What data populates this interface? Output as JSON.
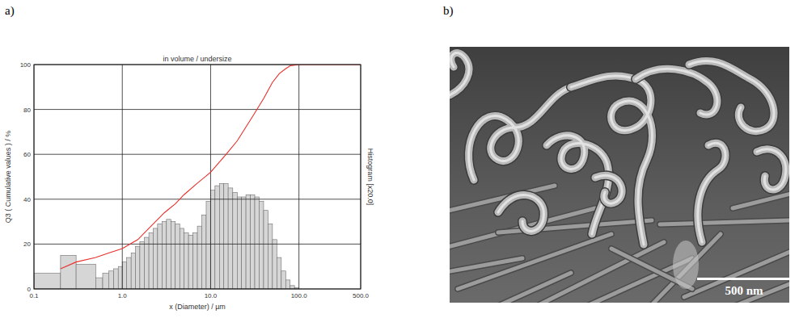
{
  "chart_data": {
    "type": "histogram",
    "title": "in volume / undersize",
    "xlabel": "x (Diameter) / µm",
    "ylabel": "Q3 ( Cumulative values ) / %",
    "y2label": "Histogram [x20.0]",
    "log": "x",
    "grid": true,
    "xlim": [
      0.1,
      500
    ],
    "xticks": [
      0.1,
      {
        "value": 1,
        "label": "1.0"
      },
      {
        "value": 10,
        "label": "10.0"
      },
      {
        "value": 100,
        "label": "100.0"
      },
      {
        "value": 500,
        "label": "500.0"
      }
    ],
    "ylim": [
      0,
      100
    ],
    "yticks": [
      0,
      20,
      40,
      60,
      80,
      100
    ],
    "color": "#d6d6d6",
    "bins": [
      0.1,
      0.2,
      0.3,
      0.5,
      0.6,
      0.7,
      0.8,
      0.9,
      1.0,
      1.12,
      1.26,
      1.41,
      1.58,
      1.78,
      2.0,
      2.24,
      2.51,
      2.82,
      3.16,
      3.55,
      3.98,
      4.47,
      5.01,
      5.62,
      6.31,
      7.08,
      7.94,
      8.91,
      10.0,
      11.2,
      12.6,
      14.1,
      15.8,
      17.8,
      20.0,
      22.4,
      25.1,
      28.2,
      31.6,
      35.5,
      39.8,
      44.7,
      50.1,
      56.2,
      63.1,
      70.8,
      79.4,
      89.1,
      100
    ],
    "values": [
      7,
      15,
      11,
      5,
      7,
      8,
      9,
      10,
      12,
      14,
      16,
      19,
      21,
      23,
      25,
      27,
      29,
      30,
      31,
      30,
      29,
      27,
      25,
      24,
      25,
      28,
      33,
      39,
      44,
      46,
      47,
      47,
      45,
      43,
      41,
      41,
      42,
      42,
      41,
      39,
      35,
      29,
      22,
      14,
      8,
      4,
      1.5,
      0.5
    ],
    "series": [
      {
        "type": "line",
        "color": "#e8302b",
        "x": [
          0.2,
          0.3,
          0.5,
          0.7,
          1.0,
          1.5,
          2,
          3,
          4,
          5,
          7,
          10,
          15,
          20,
          30,
          40,
          50,
          60,
          70,
          80,
          100,
          200,
          500
        ],
        "values": [
          9,
          12,
          14,
          16,
          18,
          22,
          27,
          34,
          38,
          42,
          47,
          52,
          60,
          66,
          77,
          85,
          92,
          96,
          98,
          99.5,
          100,
          100,
          100
        ]
      }
    ]
  },
  "panels": [
    {
      "label": "a)"
    },
    {
      "label": "b)",
      "scale_bar": "500 nm"
    }
  ]
}
